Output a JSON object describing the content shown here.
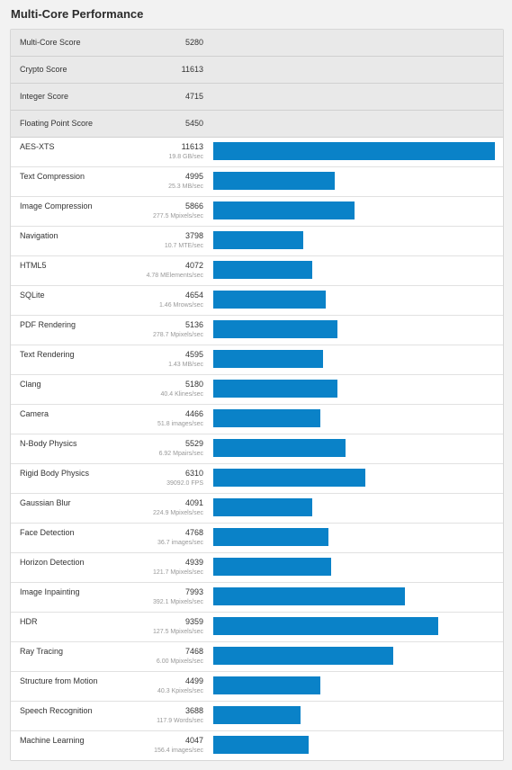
{
  "page_title": "Multi-Core Performance",
  "colors": {
    "bar": "#0a82c8",
    "summary_bg": "#e9e9e9"
  },
  "summary": [
    {
      "name": "Multi-Core Score",
      "score": "5280"
    },
    {
      "name": "Crypto Score",
      "score": "11613"
    },
    {
      "name": "Integer Score",
      "score": "4715"
    },
    {
      "name": "Floating Point Score",
      "score": "5450"
    }
  ],
  "benchmarks": [
    {
      "name": "AES-XTS",
      "score": "11613",
      "rate": "19.8 GB/sec",
      "bar_fraction": 1.0
    },
    {
      "name": "Text Compression",
      "score": "4995",
      "rate": "25.3 MB/sec",
      "bar_fraction": 0.43
    },
    {
      "name": "Image Compression",
      "score": "5866",
      "rate": "277.5 Mpixels/sec",
      "bar_fraction": 0.5
    },
    {
      "name": "Navigation",
      "score": "3798",
      "rate": "10.7 MTE/sec",
      "bar_fraction": 0.32
    },
    {
      "name": "HTML5",
      "score": "4072",
      "rate": "4.78 MElements/sec",
      "bar_fraction": 0.35
    },
    {
      "name": "SQLite",
      "score": "4654",
      "rate": "1.46 Mrows/sec",
      "bar_fraction": 0.4
    },
    {
      "name": "PDF Rendering",
      "score": "5136",
      "rate": "278.7 Mpixels/sec",
      "bar_fraction": 0.44
    },
    {
      "name": "Text Rendering",
      "score": "4595",
      "rate": "1.43 MB/sec",
      "bar_fraction": 0.39
    },
    {
      "name": "Clang",
      "score": "5180",
      "rate": "40.4 Klines/sec",
      "bar_fraction": 0.44
    },
    {
      "name": "Camera",
      "score": "4466",
      "rate": "51.8 images/sec",
      "bar_fraction": 0.38
    },
    {
      "name": "N-Body Physics",
      "score": "5529",
      "rate": "6.92 Mpairs/sec",
      "bar_fraction": 0.47
    },
    {
      "name": "Rigid Body Physics",
      "score": "6310",
      "rate": "39092.0 FPS",
      "bar_fraction": 0.54
    },
    {
      "name": "Gaussian Blur",
      "score": "4091",
      "rate": "224.9 Mpixels/sec",
      "bar_fraction": 0.35
    },
    {
      "name": "Face Detection",
      "score": "4768",
      "rate": "36.7 images/sec",
      "bar_fraction": 0.41
    },
    {
      "name": "Horizon Detection",
      "score": "4939",
      "rate": "121.7 Mpixels/sec",
      "bar_fraction": 0.42
    },
    {
      "name": "Image Inpainting",
      "score": "7993",
      "rate": "392.1 Mpixels/sec",
      "bar_fraction": 0.68
    },
    {
      "name": "HDR",
      "score": "9359",
      "rate": "127.5 Mpixels/sec",
      "bar_fraction": 0.8
    },
    {
      "name": "Ray Tracing",
      "score": "7468",
      "rate": "6.00 Mpixels/sec",
      "bar_fraction": 0.64
    },
    {
      "name": "Structure from Motion",
      "score": "4499",
      "rate": "40.3 Kpixels/sec",
      "bar_fraction": 0.38
    },
    {
      "name": "Speech Recognition",
      "score": "3688",
      "rate": "117.9 Words/sec",
      "bar_fraction": 0.31
    },
    {
      "name": "Machine Learning",
      "score": "4047",
      "rate": "156.4 images/sec",
      "bar_fraction": 0.34
    }
  ]
}
